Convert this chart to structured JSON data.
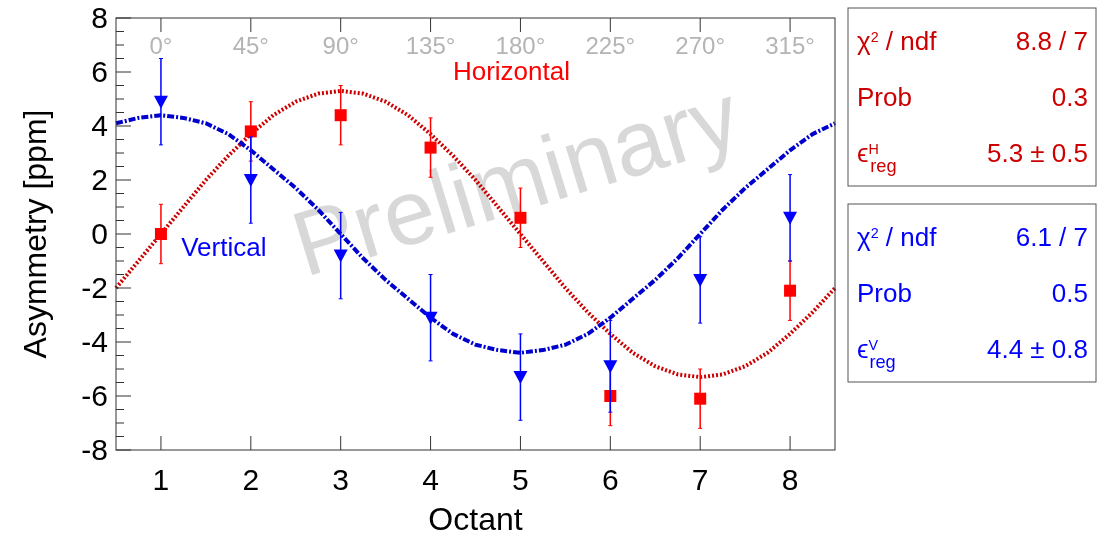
{
  "chart_data": {
    "type": "scatter",
    "xlabel": "Octant",
    "ylabel": "Asymmetry [ppm]",
    "xlim": [
      0.5,
      8.5
    ],
    "xticks": [
      1,
      2,
      3,
      4,
      5,
      6,
      7,
      8
    ],
    "x2lim": [
      -22.5,
      337.5
    ],
    "x2ticks": [
      {
        "value": 0,
        "label": "0°"
      },
      {
        "value": 45,
        "label": "45°"
      },
      {
        "value": 90,
        "label": "90°"
      },
      {
        "value": 135,
        "label": "135°"
      },
      {
        "value": 180,
        "label": "180°"
      },
      {
        "value": 225,
        "label": "225°"
      },
      {
        "value": 270,
        "label": "270°"
      },
      {
        "value": 315,
        "label": "315°"
      }
    ],
    "ylim": [
      -8,
      8
    ],
    "yticks": [
      -8,
      {
        "value": -7.5,
        "label": null
      },
      {
        "value": -7,
        "label": null
      },
      {
        "value": -6.5,
        "label": null
      },
      -6,
      {
        "value": -5.5,
        "label": null
      },
      {
        "value": -5,
        "label": null
      },
      {
        "value": -4.5,
        "label": null
      },
      -4,
      {
        "value": -3.5,
        "label": null
      },
      {
        "value": -3,
        "label": null
      },
      {
        "value": -2.5,
        "label": null
      },
      -2,
      {
        "value": -1.5,
        "label": null
      },
      {
        "value": -1,
        "label": null
      },
      {
        "value": -0.5,
        "label": null
      },
      0,
      {
        "value": 0.5,
        "label": null
      },
      {
        "value": 1,
        "label": null
      },
      {
        "value": 1.5,
        "label": null
      },
      2,
      {
        "value": 2.5,
        "label": null
      },
      {
        "value": 3,
        "label": null
      },
      {
        "value": 3.5,
        "label": null
      },
      4,
      {
        "value": 4.5,
        "label": null
      },
      {
        "value": 5,
        "label": null
      },
      {
        "value": 5.5,
        "label": null
      },
      6,
      {
        "value": 6.5,
        "label": null
      },
      {
        "value": 7,
        "label": null
      },
      {
        "value": 7.5,
        "label": null
      },
      8
    ],
    "grid": false,
    "series": [
      {
        "name": "Horizontal",
        "marker": "square",
        "color": "#ff0000",
        "x": [
          1,
          2,
          3,
          4,
          5,
          6,
          7,
          8
        ],
        "values": [
          0,
          3.8,
          4.4,
          3.2,
          0.6,
          -6.0,
          -6.1,
          -2.1
        ],
        "errors": [
          1.1,
          1.1,
          1.1,
          1.1,
          1.1,
          1.1,
          1.1,
          1.1
        ]
      },
      {
        "name": "Vertical",
        "marker": "triangle",
        "color": "#0000ff",
        "x": [
          1,
          2,
          3,
          4,
          5,
          6,
          7,
          8
        ],
        "values": [
          4.9,
          2.0,
          -0.8,
          -3.1,
          -5.3,
          -4.9,
          -1.7,
          0.6
        ],
        "errors": [
          1.6,
          1.6,
          1.6,
          1.6,
          1.6,
          1.7,
          1.6,
          1.6
        ]
      },
      {
        "type": "line",
        "line_style": "dotted",
        "color": "#cc0000",
        "x": [
          0.5,
          0.75,
          1,
          1.25,
          1.5,
          1.75,
          2,
          2.25,
          2.5,
          2.75,
          3,
          3.25,
          3.5,
          3.75,
          4,
          4.25,
          4.5,
          4.75,
          5,
          5.25,
          5.5,
          5.75,
          6,
          6.25,
          6.5,
          6.75,
          7,
          7.25,
          7.5,
          7.75,
          8,
          8.25,
          8.5
        ],
        "values": [
          -2.0,
          -1.0,
          0,
          1.0,
          2.0,
          2.9,
          3.7,
          4.4,
          4.9,
          5.2,
          5.3,
          5.2,
          4.9,
          4.4,
          3.7,
          2.9,
          2.0,
          1.0,
          0,
          -1.0,
          -2.0,
          -2.9,
          -3.7,
          -4.4,
          -4.9,
          -5.2,
          -5.3,
          -5.2,
          -4.9,
          -4.4,
          -3.7,
          -2.9,
          -2.0
        ]
      },
      {
        "type": "line",
        "line_style": "dashed",
        "color": "#0000cc",
        "x": [
          0.5,
          0.75,
          1,
          1.25,
          1.5,
          1.75,
          2,
          2.25,
          2.5,
          2.75,
          3,
          3.25,
          3.5,
          3.75,
          4,
          4.25,
          4.5,
          4.75,
          5,
          5.25,
          5.5,
          5.75,
          6,
          6.25,
          6.5,
          6.75,
          7,
          7.25,
          7.5,
          7.75,
          8,
          8.25,
          8.5
        ],
        "values": [
          4.1,
          4.3,
          4.4,
          4.3,
          4.1,
          3.7,
          3.1,
          2.4,
          1.7,
          0.9,
          0,
          -0.9,
          -1.7,
          -2.4,
          -3.1,
          -3.7,
          -4.1,
          -4.3,
          -4.4,
          -4.3,
          -4.1,
          -3.7,
          -3.1,
          -2.4,
          -1.7,
          -0.9,
          0,
          0.9,
          1.7,
          2.4,
          3.1,
          3.7,
          4.1
        ]
      }
    ],
    "annotations": [
      "Preliminary",
      "χ$^{2}$ / ndf",
      "8.8 / 7",
      "Prob",
      "0.3",
      "ϵ$^{H}$$_{reg}$",
      "5.3 ± 0.5",
      "χ$^{2}$ / ndf",
      "6.1 / 7",
      "Prob",
      "0.5",
      "ϵ$^{V}$$_{reg}$",
      "4.4 ± 0.8"
    ]
  }
}
